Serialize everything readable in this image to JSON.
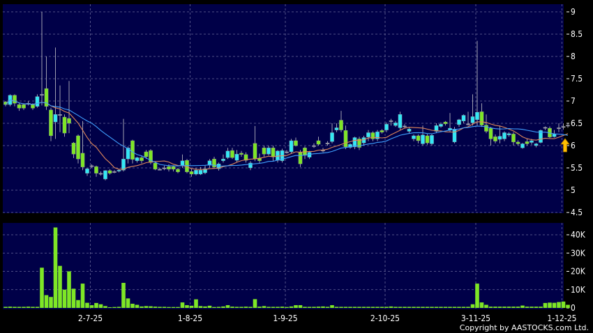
{
  "chart_data": [
    {
      "type": "candlestick",
      "title": "",
      "ylim": [
        4.5,
        9
      ],
      "y_ticks": [
        "9",
        "8.5",
        "8",
        "7.5",
        "7",
        "6.5",
        "6",
        "5.5",
        "5",
        "4.5"
      ],
      "grid": true,
      "colors": {
        "up": "#33e8f5",
        "down": "#7ee626",
        "doji": "#a0a0b0",
        "wick": "#a0a0b0",
        "ma_short": "#e0885a",
        "ma_long": "#3fa0ff",
        "background": "#000048",
        "arrow": "#ffc000"
      },
      "moving_averages": [
        10,
        20
      ],
      "candles_ohlc": [
        [
          6.98,
          7.0,
          6.88,
          6.92
        ],
        [
          6.92,
          7.15,
          6.88,
          7.13
        ],
        [
          7.13,
          7.15,
          6.88,
          6.95
        ],
        [
          6.92,
          6.95,
          6.78,
          6.84
        ],
        [
          6.92,
          6.95,
          6.8,
          6.84
        ],
        [
          6.95,
          7.0,
          6.9,
          6.95
        ],
        [
          6.92,
          6.95,
          6.8,
          6.84
        ],
        [
          6.88,
          7.15,
          6.85,
          7.1
        ],
        [
          7.15,
          9.0,
          6.9,
          7.15
        ],
        [
          7.28,
          8.0,
          6.8,
          6.88
        ],
        [
          6.8,
          6.85,
          6.1,
          6.22
        ],
        [
          6.53,
          8.2,
          6.15,
          6.7
        ],
        [
          6.7,
          7.35,
          6.3,
          6.7
        ],
        [
          6.64,
          6.7,
          6.2,
          6.28
        ],
        [
          6.61,
          7.45,
          6.28,
          6.5
        ],
        [
          6.06,
          6.08,
          5.72,
          5.81
        ],
        [
          6.22,
          6.25,
          5.6,
          5.7
        ],
        [
          5.83,
          6.55,
          5.45,
          5.52
        ],
        [
          5.38,
          5.5,
          5.32,
          5.48
        ],
        [
          5.55,
          5.58,
          5.5,
          5.55
        ],
        [
          5.53,
          5.55,
          5.3,
          5.38
        ],
        [
          5.38,
          5.42,
          5.33,
          5.38
        ],
        [
          5.25,
          5.45,
          5.22,
          5.44
        ],
        [
          5.44,
          5.47,
          5.35,
          5.38
        ],
        [
          5.42,
          5.45,
          5.38,
          5.42
        ],
        [
          5.43,
          5.47,
          5.4,
          5.45
        ],
        [
          5.45,
          6.6,
          5.42,
          5.7
        ],
        [
          5.7,
          5.98,
          5.6,
          5.95
        ],
        [
          6.11,
          6.13,
          5.6,
          5.69
        ],
        [
          5.66,
          5.75,
          5.62,
          5.73
        ],
        [
          5.73,
          5.76,
          5.6,
          5.66
        ],
        [
          5.86,
          5.9,
          5.7,
          5.75
        ],
        [
          5.89,
          5.92,
          5.58,
          5.62
        ],
        [
          5.61,
          5.63,
          5.45,
          5.47
        ],
        [
          5.47,
          5.5,
          5.45,
          5.47
        ],
        [
          5.5,
          5.55,
          5.45,
          5.5
        ],
        [
          5.53,
          5.58,
          5.42,
          5.47
        ],
        [
          5.53,
          5.55,
          5.42,
          5.47
        ],
        [
          5.47,
          5.5,
          5.38,
          5.41
        ],
        [
          5.56,
          5.8,
          5.5,
          5.66
        ],
        [
          5.67,
          5.7,
          5.38,
          5.41
        ],
        [
          5.42,
          5.48,
          5.3,
          5.36
        ],
        [
          5.36,
          5.5,
          5.33,
          5.45
        ],
        [
          5.36,
          5.52,
          5.34,
          5.45
        ],
        [
          5.39,
          5.55,
          5.36,
          5.48
        ],
        [
          5.56,
          5.7,
          5.5,
          5.66
        ],
        [
          5.7,
          5.75,
          5.48,
          5.52
        ],
        [
          5.48,
          5.62,
          5.44,
          5.59
        ],
        [
          5.66,
          5.8,
          5.62,
          5.7
        ],
        [
          5.73,
          5.95,
          5.7,
          5.88
        ],
        [
          5.89,
          5.95,
          5.7,
          5.73
        ],
        [
          5.67,
          5.9,
          5.62,
          5.81
        ],
        [
          5.83,
          5.88,
          5.75,
          5.8
        ],
        [
          5.8,
          5.85,
          5.62,
          5.67
        ],
        [
          5.5,
          5.65,
          5.45,
          5.61
        ],
        [
          6.05,
          6.44,
          5.65,
          5.7
        ],
        [
          5.72,
          5.82,
          5.6,
          5.66
        ],
        [
          5.95,
          6.0,
          5.75,
          5.81
        ],
        [
          5.81,
          6.0,
          5.78,
          5.95
        ],
        [
          5.95,
          6.0,
          5.65,
          5.75
        ],
        [
          5.67,
          5.9,
          5.62,
          5.88
        ],
        [
          5.66,
          5.93,
          5.62,
          5.89
        ],
        [
          5.86,
          5.9,
          5.82,
          5.86
        ],
        [
          5.86,
          6.15,
          5.82,
          6.11
        ],
        [
          6.11,
          6.18,
          5.98,
          6.0
        ],
        [
          5.85,
          5.9,
          5.52,
          5.59
        ],
        [
          5.95,
          5.98,
          5.7,
          5.78
        ],
        [
          5.74,
          5.88,
          5.7,
          5.85
        ],
        [
          6.0,
          6.05,
          5.95,
          6.0
        ],
        [
          6.11,
          6.2,
          6.0,
          6.03
        ],
        [
          5.9,
          5.95,
          5.85,
          5.9
        ],
        [
          6.06,
          6.1,
          6.0,
          6.06
        ],
        [
          6.09,
          6.5,
          6.05,
          6.29
        ],
        [
          6.35,
          6.5,
          6.3,
          6.4
        ],
        [
          6.57,
          6.78,
          6.3,
          6.35
        ],
        [
          6.34,
          6.45,
          5.92,
          5.97
        ],
        [
          5.96,
          6.05,
          5.93,
          6.03
        ],
        [
          5.97,
          6.2,
          5.92,
          6.18
        ],
        [
          6.15,
          6.2,
          5.9,
          5.96
        ],
        [
          6.06,
          6.22,
          6.0,
          6.18
        ],
        [
          6.19,
          6.35,
          6.1,
          6.29
        ],
        [
          6.29,
          6.32,
          6.1,
          6.15
        ],
        [
          6.15,
          6.35,
          6.1,
          6.31
        ],
        [
          6.34,
          6.37,
          6.27,
          6.3
        ],
        [
          6.35,
          6.52,
          6.3,
          6.48
        ],
        [
          6.56,
          6.6,
          6.45,
          6.56
        ],
        [
          6.45,
          6.55,
          6.42,
          6.51
        ],
        [
          6.4,
          6.76,
          6.35,
          6.7
        ],
        [
          6.44,
          6.48,
          6.4,
          6.44
        ],
        [
          6.32,
          6.4,
          6.28,
          6.37
        ],
        [
          6.15,
          6.25,
          6.1,
          6.22
        ],
        [
          6.22,
          6.25,
          6.05,
          6.11
        ],
        [
          6.04,
          6.45,
          6.0,
          6.24
        ],
        [
          6.22,
          6.26,
          6.02,
          6.06
        ],
        [
          6.04,
          6.26,
          6.0,
          6.23
        ],
        [
          6.32,
          6.5,
          6.28,
          6.45
        ],
        [
          6.43,
          6.52,
          6.4,
          6.48
        ],
        [
          6.53,
          6.55,
          6.45,
          6.49
        ],
        [
          6.35,
          6.73,
          6.3,
          6.39
        ],
        [
          6.08,
          6.42,
          6.05,
          6.37
        ],
        [
          6.47,
          6.6,
          6.42,
          6.58
        ],
        [
          6.55,
          6.7,
          6.5,
          6.68
        ],
        [
          6.49,
          6.76,
          6.45,
          6.49
        ],
        [
          6.51,
          7.15,
          6.45,
          6.65
        ],
        [
          6.58,
          8.35,
          6.45,
          6.75
        ],
        [
          6.76,
          6.95,
          6.42,
          6.46
        ],
        [
          6.46,
          6.7,
          6.28,
          6.32
        ],
        [
          6.39,
          6.42,
          6.0,
          6.15
        ],
        [
          6.2,
          6.25,
          6.05,
          6.1
        ],
        [
          6.14,
          6.45,
          6.05,
          6.21
        ],
        [
          6.15,
          6.32,
          6.1,
          6.29
        ],
        [
          6.24,
          6.3,
          6.2,
          6.27
        ],
        [
          6.26,
          6.3,
          6.0,
          6.08
        ],
        [
          6.08,
          6.12,
          6.0,
          6.04
        ],
        [
          5.95,
          6.06,
          5.93,
          6.04
        ],
        [
          6.09,
          6.15,
          6.0,
          6.04
        ],
        [
          6.07,
          6.15,
          6.02,
          6.11
        ],
        [
          6.0,
          6.06,
          5.96,
          6.04
        ],
        [
          6.07,
          6.36,
          6.05,
          6.34
        ],
        [
          6.41,
          6.43,
          6.35,
          6.41
        ],
        [
          6.39,
          6.43,
          6.17,
          6.19
        ],
        [
          6.2,
          6.35,
          6.18,
          6.26
        ],
        [
          6.4,
          6.5,
          6.3,
          6.4
        ],
        [
          6.43,
          6.5,
          6.36,
          6.43
        ],
        [
          6.46,
          6.5,
          6.4,
          6.46
        ]
      ]
    },
    {
      "type": "bar",
      "title": "",
      "ylim": [
        0,
        45000
      ],
      "y_ticks": [
        "40K",
        "30K",
        "20K",
        "10K",
        "0"
      ],
      "y_tick_values": [
        40000,
        30000,
        20000,
        10000,
        0
      ],
      "x_tick_labels": [
        "2-7-25",
        "1-8-25",
        "1-9-25",
        "2-10-25",
        "3-11-25",
        "1-12-25"
      ],
      "x_tick_candle_index": [
        19,
        41,
        62,
        84,
        104,
        123
      ],
      "bar_color": "#7ee626",
      "values": [
        600,
        700,
        600,
        600,
        600,
        700,
        600,
        600,
        22000,
        7000,
        6000,
        44000,
        23000,
        10000,
        20000,
        10500,
        4300,
        13300,
        2800,
        1500,
        2700,
        2000,
        1000,
        400,
        500,
        600,
        13700,
        5200,
        2300,
        1700,
        800,
        1000,
        900,
        700,
        600,
        600,
        500,
        500,
        500,
        3000,
        1500,
        1200,
        4700,
        1000,
        800,
        1200,
        500,
        600,
        800,
        1500,
        700,
        600,
        600,
        700,
        600,
        4800,
        700,
        1000,
        600,
        600,
        600,
        700,
        500,
        800,
        1500,
        1500,
        600,
        600,
        600,
        700,
        800,
        600,
        1500,
        600,
        600,
        600,
        600,
        600,
        600,
        600,
        600,
        600,
        600,
        600,
        600,
        800,
        600,
        600,
        600,
        600,
        600,
        600,
        600,
        600,
        600,
        600,
        600,
        600,
        600,
        600,
        600,
        600,
        600,
        2000,
        13300,
        3000,
        1700,
        700,
        700,
        700,
        700,
        700,
        700,
        700,
        1300,
        700,
        700,
        700,
        700,
        2700,
        2900,
        2800,
        3200,
        3500,
        1700
      ]
    }
  ],
  "copyright": "Copyright by AASTOCKS.com Ltd."
}
